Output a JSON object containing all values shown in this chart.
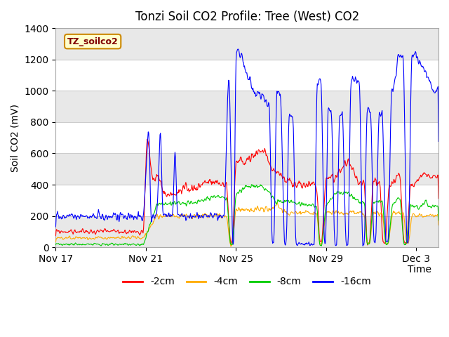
{
  "title": "Tonzi Soil CO2 Profile: Tree (West) CO2",
  "ylabel": "Soil CO2 (mV)",
  "xlabel": "Time",
  "legend_label": "TZ_soilco2",
  "series_labels": [
    "-2cm",
    "-4cm",
    "-8cm",
    "-16cm"
  ],
  "series_colors": [
    "#ff0000",
    "#ffaa00",
    "#00cc00",
    "#0000ff"
  ],
  "ylim": [
    0,
    1400
  ],
  "yticks": [
    0,
    200,
    400,
    600,
    800,
    1000,
    1200,
    1400
  ],
  "xtick_labels": [
    "Nov 17",
    "Nov 21",
    "Nov 25",
    "Nov 29",
    "Dec 3"
  ],
  "xtick_positions": [
    0,
    4,
    8,
    12,
    16
  ],
  "title_fontsize": 12,
  "axis_fontsize": 10,
  "tick_fontsize": 10,
  "legend_fontsize": 10,
  "label_color": "#800000",
  "label_bg": "#ffffcc",
  "label_edge": "#cc8800"
}
